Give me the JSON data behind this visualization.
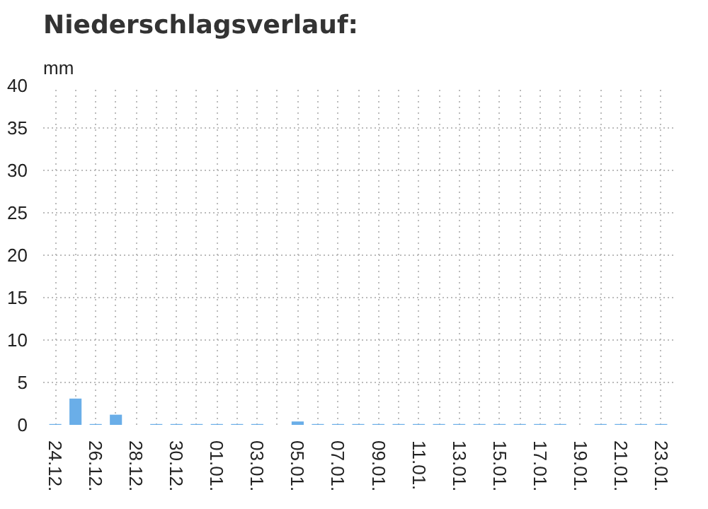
{
  "chart_data": {
    "type": "bar",
    "title": "Niederschlagsverlauf:",
    "ylabel": "mm",
    "categories": [
      "24.12.",
      null,
      "26.12.",
      null,
      "28.12.",
      null,
      "30.12.",
      null,
      "01.01.",
      null,
      "03.01.",
      null,
      "05.01.",
      null,
      "07.01.",
      null,
      "09.01.",
      null,
      "11.01.",
      null,
      "13.01.",
      null,
      "15.01.",
      null,
      "17.01.",
      null,
      "19.01.",
      null,
      "21.01.",
      null,
      "23.01."
    ],
    "values": [
      0.1,
      3.1,
      0.1,
      1.2,
      0,
      0.1,
      0.1,
      0.1,
      0.1,
      0.1,
      0.1,
      0,
      0.4,
      0.1,
      0.1,
      0.1,
      0.1,
      0.1,
      0.1,
      0.1,
      0.1,
      0.1,
      0.1,
      0.1,
      0.1,
      0.1,
      0,
      0.1,
      0.1,
      0.1,
      0.1
    ],
    "color": "#6aaee8",
    "ylim": [
      0,
      40
    ],
    "yticks": [
      0,
      5,
      10,
      15,
      20,
      25,
      30,
      35,
      40
    ],
    "grid": true
  }
}
